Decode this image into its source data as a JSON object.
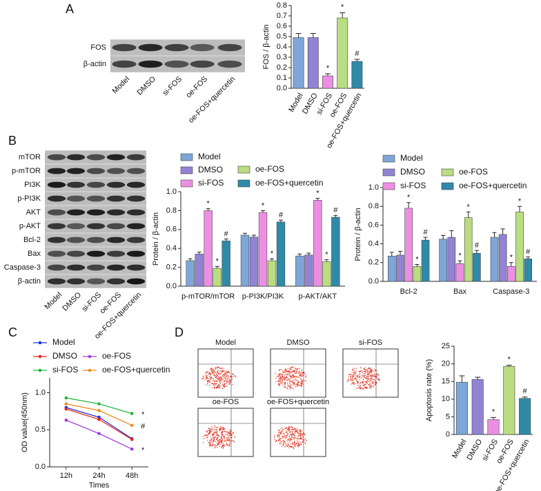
{
  "figure": {
    "panel_labels": [
      "A",
      "B",
      "C",
      "D"
    ],
    "blot_a": {
      "rows": [
        "FOS",
        "β-actin"
      ],
      "lanes": [
        "Model",
        "DMSO",
        "si-FOS",
        "oe-FOS",
        "oe-FOS+quercetin"
      ]
    },
    "blot_b": {
      "rows": [
        "mTOR",
        "p-mTOR",
        "PI3K",
        "p-PI3K",
        "AKT",
        "p-AKT",
        "Bcl-2",
        "Bax",
        "Caspase-3",
        "β-actin"
      ],
      "lanes": [
        "Model",
        "DMSO",
        "si-FOS",
        "oe-FOS",
        "oe-FOS+quercetin"
      ]
    },
    "flow": {
      "titles": [
        "Model",
        "DMSO",
        "si-FOS",
        "oe-FOS",
        "oe-FOS+quercetin"
      ]
    }
  },
  "chart_data": [
    {
      "type": "bar",
      "y_label": "FOS / β-actin",
      "categories": [
        "Model",
        "DMSO",
        "si-FOS",
        "oe-FOS",
        "oe-FOS+quercetin"
      ],
      "values": [
        0.49,
        0.49,
        0.12,
        0.68,
        0.26
      ],
      "errors": [
        0.04,
        0.04,
        0.02,
        0.05,
        0.02
      ],
      "markers": [
        null,
        null,
        "*",
        "*",
        "#"
      ],
      "colors": [
        "#7ea6d8",
        "#9283d3",
        "#ec8fe3",
        "#b9dd80",
        "#2f8aa8"
      ],
      "ylim": [
        0,
        0.8
      ],
      "yticks": [
        {
          "value": 0,
          "label": "0.0"
        },
        0.1,
        0.2,
        0.3,
        0.4,
        0.5,
        0.6,
        0.7,
        0.8
      ]
    },
    {
      "type": "grouped_bar",
      "y_label": "Protein / β-actin",
      "categories": [
        "p-mTOR/mTOR",
        "p-PI3K/PI3K",
        "p-AKT/AKT"
      ],
      "series": [
        {
          "name": "Model",
          "color": "#7ea6d8",
          "values": [
            0.27,
            0.54,
            0.32
          ],
          "errors": [
            0.02,
            0.02,
            0.02
          ],
          "markers": [
            null,
            null,
            null
          ]
        },
        {
          "name": "DMSO",
          "color": "#9283d3",
          "values": [
            0.34,
            0.52,
            0.33
          ],
          "errors": [
            0.02,
            0.02,
            0.02
          ],
          "markers": [
            null,
            null,
            null
          ]
        },
        {
          "name": "si-FOS",
          "color": "#ec8fe3",
          "values": [
            0.8,
            0.78,
            0.91
          ],
          "errors": [
            0.02,
            0.02,
            0.02
          ],
          "markers": [
            "*",
            "*",
            "*"
          ]
        },
        {
          "name": "oe-FOS",
          "color": "#b9dd80",
          "values": [
            0.19,
            0.27,
            0.26
          ],
          "errors": [
            0.02,
            0.02,
            0.02
          ],
          "markers": [
            "*",
            "*",
            "*"
          ]
        },
        {
          "name": "oe-FOS+quercetin",
          "color": "#2f8aa8",
          "values": [
            0.48,
            0.68,
            0.73
          ],
          "errors": [
            0.02,
            0.02,
            0.02
          ],
          "markers": [
            "#",
            "#",
            "#"
          ]
        }
      ],
      "ylim": [
        0,
        1.0
      ],
      "yticks": [
        {
          "value": 0,
          "label": "0.0"
        },
        0.2,
        0.4,
        0.6,
        0.8,
        {
          "value": 1.0,
          "label": "1.0"
        }
      ]
    },
    {
      "type": "grouped_bar",
      "y_label": "Protein / β-actin",
      "categories": [
        "Bcl-2",
        "Bax",
        "Caspase-3"
      ],
      "series": [
        {
          "name": "Model",
          "color": "#7ea6d8",
          "values": [
            0.27,
            0.45,
            0.47
          ],
          "errors": [
            0.04,
            0.04,
            0.05
          ],
          "markers": [
            null,
            null,
            null
          ]
        },
        {
          "name": "DMSO",
          "color": "#9283d3",
          "values": [
            0.28,
            0.47,
            0.5
          ],
          "errors": [
            0.04,
            0.07,
            0.06
          ],
          "markers": [
            null,
            null,
            null
          ]
        },
        {
          "name": "si-FOS",
          "color": "#ec8fe3",
          "values": [
            0.78,
            0.19,
            0.16
          ],
          "errors": [
            0.06,
            0.03,
            0.04
          ],
          "markers": [
            "*",
            "*",
            "*"
          ]
        },
        {
          "name": "oe-FOS",
          "color": "#b9dd80",
          "values": [
            0.16,
            0.68,
            0.74
          ],
          "errors": [
            0.02,
            0.06,
            0.06
          ],
          "markers": [
            "*",
            "*",
            "*"
          ]
        },
        {
          "name": "oe-FOS+quercetin",
          "color": "#2f8aa8",
          "values": [
            0.44,
            0.3,
            0.24
          ],
          "errors": [
            0.03,
            0.03,
            0.02
          ],
          "markers": [
            "#",
            "#",
            "#"
          ]
        }
      ],
      "ylim": [
        0,
        1.0
      ],
      "yticks": [
        {
          "value": 0,
          "label": "0.0"
        },
        0.2,
        0.4,
        0.6,
        0.8,
        {
          "value": 1.0,
          "label": "1.0"
        }
      ]
    },
    {
      "type": "line",
      "x_label": "Times",
      "y_label": "OD value(450nm)",
      "categories": [
        "12h",
        "24h",
        "48h"
      ],
      "series": [
        {
          "name": "Model",
          "color": "#1f2fd6",
          "values": [
            0.8,
            0.67,
            0.38
          ],
          "markers": [
            null,
            null,
            null
          ]
        },
        {
          "name": "DMSO",
          "color": "#e8291f",
          "values": [
            0.78,
            0.64,
            0.37
          ],
          "markers": [
            null,
            null,
            null
          ]
        },
        {
          "name": "si-FOS",
          "color": "#22b63a",
          "values": [
            0.93,
            0.85,
            0.72
          ],
          "markers": [
            null,
            null,
            "*"
          ]
        },
        {
          "name": "oe-FOS",
          "color": "#a43be0",
          "values": [
            0.63,
            0.45,
            0.24
          ],
          "markers": [
            null,
            null,
            "*"
          ]
        },
        {
          "name": "oe-FOS+quercetin",
          "color": "#f08a1c",
          "values": [
            0.85,
            0.76,
            0.56
          ],
          "markers": [
            null,
            null,
            "#"
          ]
        }
      ],
      "ylim": [
        0,
        1.2
      ],
      "yticks": [
        {
          "value": 0,
          "label": "0.0"
        },
        {
          "value": 0.5,
          "label": "0.5"
        },
        {
          "value": 1.0,
          "label": "1.0"
        }
      ]
    },
    {
      "type": "bar",
      "y_label": "Apoptosis rate (%)",
      "categories": [
        "Model",
        "DMSO",
        "si-FOS",
        "oe-FOS",
        "oe-FOS+quercetin"
      ],
      "values": [
        14.8,
        15.6,
        4.2,
        19.3,
        10.2
      ],
      "errors": [
        1.8,
        0.6,
        0.6,
        0.3,
        0.4
      ],
      "markers": [
        null,
        null,
        "*",
        "*",
        "#"
      ],
      "colors": [
        "#7ea6d8",
        "#9283d3",
        "#ec8fe3",
        "#b9dd80",
        "#2f8aa8"
      ],
      "ylim": [
        0,
        25
      ],
      "yticks": [
        0,
        5,
        10,
        15,
        20,
        25
      ]
    }
  ]
}
